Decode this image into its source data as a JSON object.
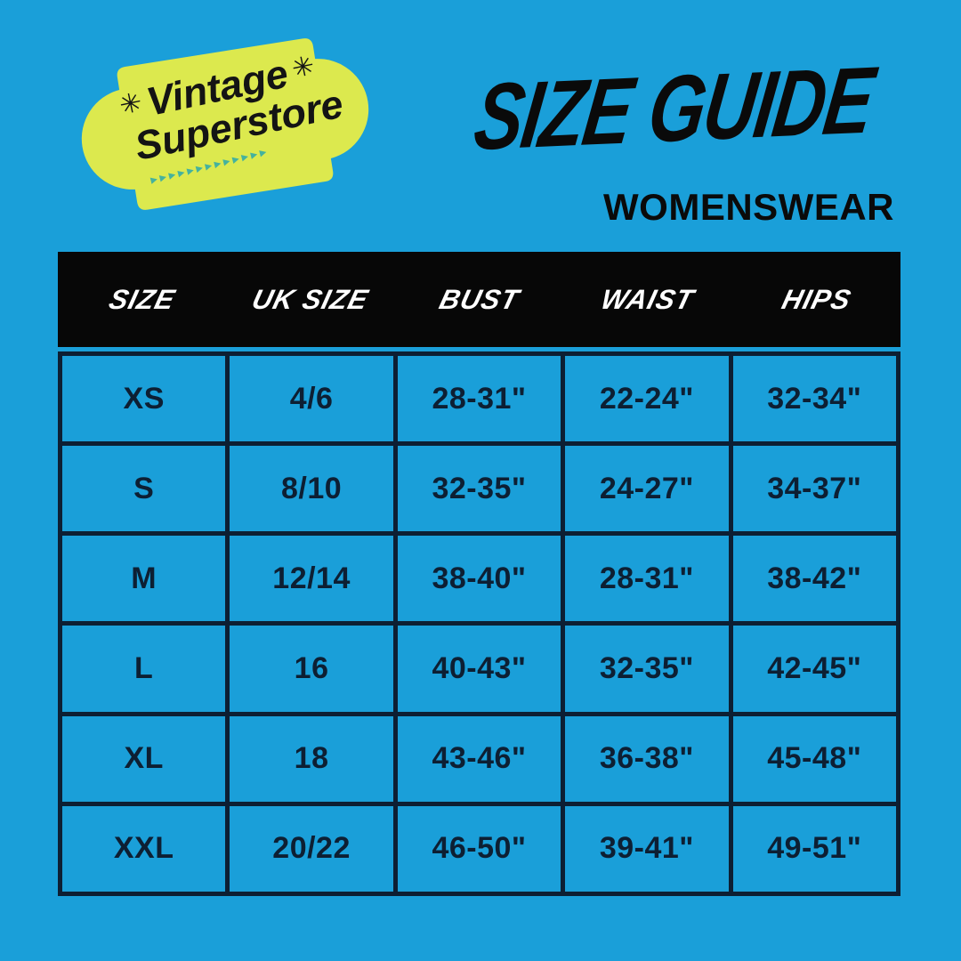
{
  "colors": {
    "background": "#1A9FD9",
    "badge": "#DCE94E",
    "arrows": "#45B29D",
    "header_bar": "#070707",
    "header_text": "#FFFFFF",
    "grid": "#0D1F33",
    "cell_text": "#0D1F33",
    "ink": "#0A0A0A"
  },
  "logo": {
    "line1": "Vintage",
    "line2": "Superstore",
    "star": "✳",
    "arrows": "▸▸▸▸▸▸▸▸▸▸▸▸▸"
  },
  "header": {
    "title": "SIZE GUIDE",
    "subtitle": "WOMENSWEAR"
  },
  "table": {
    "columns": [
      "SIZE",
      "UK SIZE",
      "BUST",
      "WAIST",
      "HIPS"
    ],
    "rows": [
      [
        "XS",
        "4/6",
        "28-31\"",
        "22-24\"",
        "32-34\""
      ],
      [
        "S",
        "8/10",
        "32-35\"",
        "24-27\"",
        "34-37\""
      ],
      [
        "M",
        "12/14",
        "38-40\"",
        "28-31\"",
        "38-42\""
      ],
      [
        "L",
        "16",
        "40-43\"",
        "32-35\"",
        "42-45\""
      ],
      [
        "XL",
        "18",
        "43-46\"",
        "36-38\"",
        "45-48\""
      ],
      [
        "XXL",
        "20/22",
        "46-50\"",
        "39-41\"",
        "49-51\""
      ]
    ]
  }
}
